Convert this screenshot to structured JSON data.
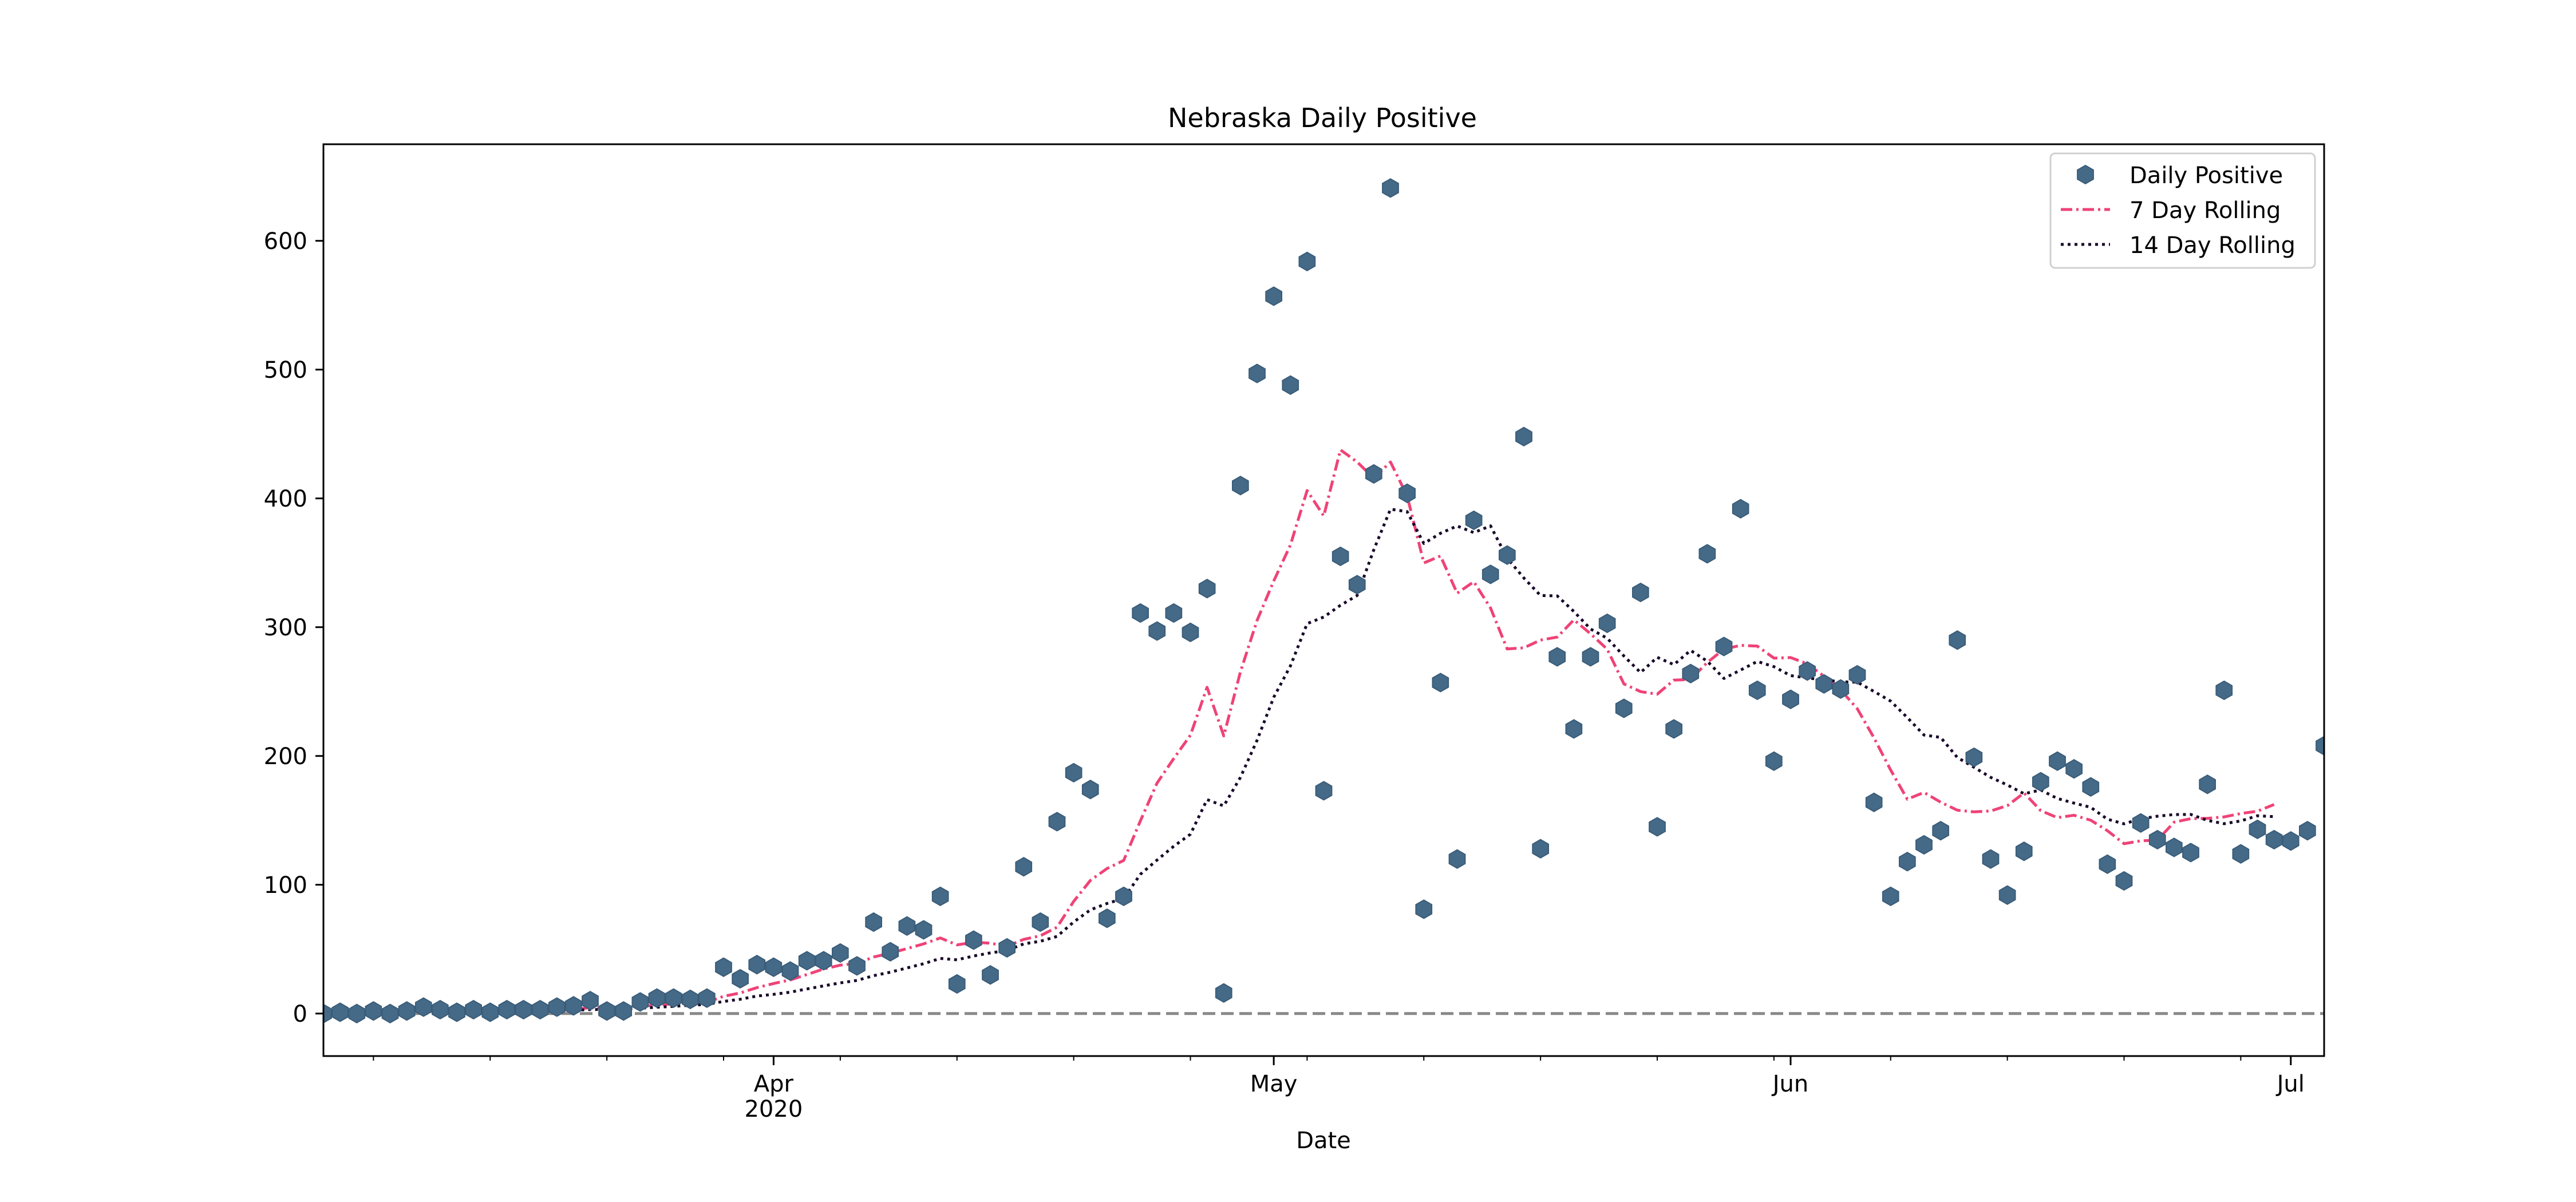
{
  "chart_data": {
    "type": "scatter",
    "title": "Nebraska Daily Positive",
    "xlabel": "Date",
    "ylabel": "",
    "x_start": "2020-03-05",
    "xlim": [
      "2020-03-05",
      "2020-07-03"
    ],
    "ylim": [
      -33,
      675
    ],
    "x_ticks": [
      {
        "date": "2020-04-01",
        "label": "Apr",
        "sublabel": "2020"
      },
      {
        "date": "2020-05-01",
        "label": "May",
        "sublabel": ""
      },
      {
        "date": "2020-06-01",
        "label": "Jun",
        "sublabel": ""
      },
      {
        "date": "2020-07-01",
        "label": "Jul",
        "sublabel": ""
      }
    ],
    "y_ticks": [
      0,
      100,
      200,
      300,
      400,
      500,
      600
    ],
    "reference_line": {
      "y": 0,
      "color": "#888888",
      "style": "dashed"
    },
    "legend": {
      "position": "top-right",
      "entries": [
        "Daily Positive",
        "7 Day Rolling",
        "14 Day Rolling"
      ]
    },
    "series": [
      {
        "name": "Daily Positive",
        "kind": "scatter",
        "color": "#456a88",
        "values": [
          0,
          1,
          0,
          2,
          0,
          2,
          5,
          3,
          1,
          3,
          1,
          3,
          3,
          3,
          5,
          6,
          10,
          2,
          2,
          9,
          12,
          12,
          11,
          12,
          36,
          27,
          38,
          36,
          33,
          41,
          41,
          47,
          37,
          71,
          48,
          68,
          65,
          91,
          23,
          57,
          30,
          51,
          114,
          71,
          149,
          187,
          174,
          74,
          91,
          311,
          297,
          311,
          296,
          330,
          16,
          410,
          497,
          557,
          488,
          584,
          173,
          355,
          333,
          419,
          641,
          404,
          81,
          257,
          120,
          383,
          341,
          356,
          448,
          128,
          277,
          221,
          277,
          303,
          237,
          327,
          145,
          221,
          264,
          357,
          285,
          392,
          251,
          196,
          244,
          266,
          256,
          252,
          263,
          164,
          91,
          118,
          131,
          142,
          290,
          199,
          120,
          92,
          126,
          180,
          196,
          190,
          176,
          116,
          103,
          148,
          135,
          129,
          125,
          178,
          251,
          124,
          143,
          135,
          134,
          142,
          208
        ]
      },
      {
        "name": "7 Day Rolling",
        "kind": "line",
        "color": "#ef4377",
        "style": "dashdot",
        "values": [
          null,
          null,
          null,
          null,
          null,
          null,
          1.4,
          1.9,
          1.9,
          2.3,
          2.4,
          2.6,
          2.7,
          2.4,
          2.7,
          3.4,
          4.4,
          4.6,
          5.1,
          5.6,
          6.6,
          7.6,
          8.3,
          8.6,
          13.4,
          16.0,
          20.1,
          23.3,
          26.1,
          30.3,
          34.6,
          37.6,
          38.9,
          43.9,
          46.9,
          50.4,
          54.1,
          58.7,
          53.3,
          55.4,
          54.6,
          52.3,
          57.6,
          60.4,
          67.0,
          87.1,
          103.4,
          112.6,
          118.9,
          149.6,
          179.0,
          198.0,
          216.1,
          253.3,
          215.6,
          265.3,
          305.3,
          335.9,
          363.9,
          406.1,
          386.4,
          437.7,
          428.3,
          415.6,
          428.3,
          402.0,
          349.9,
          355.3,
          326.4,
          335.3,
          314.9,
          283.1,
          284.0,
          290.0,
          292.3,
          305.7,
          294.9,
          282.9,
          256.0,
          250.0,
          248.0,
          258.9,
          259.4,
          272.6,
          282.9,
          285.9,
          285.3,
          276.0,
          276.4,
          271.6,
          262.0,
          251.3,
          236.7,
          214.1,
          189.1,
          166.4,
          171.7,
          164.1,
          157.9,
          156.6,
          157.3,
          161.4,
          171.3,
          157.6,
          152.1,
          154.0,
          150.1,
          142.0,
          131.9,
          134.1,
          134.6,
          148.6,
          151.3,
          151.6,
          152.7,
          155.3,
          157.1,
          162.3
        ]
      },
      {
        "name": "14 Day Rolling",
        "kind": "line",
        "color": "#170829",
        "style": "dotted",
        "values": [
          null,
          null,
          null,
          null,
          null,
          null,
          null,
          null,
          null,
          null,
          null,
          null,
          null,
          1.9,
          2.2,
          2.5,
          3.1,
          3.2,
          3.6,
          4.1,
          4.9,
          5.6,
          6.4,
          7.1,
          9.4,
          11.1,
          13.6,
          14.9,
          16.6,
          19.1,
          21.5,
          23.8,
          25.7,
          29.4,
          32.1,
          35.4,
          38.7,
          42.8,
          41.7,
          44.7,
          47.1,
          48.9,
          54.1,
          56.1,
          59.9,
          71.1,
          80.5,
          85.5,
          89.3,
          108.1,
          119.2,
          129.9,
          139.2,
          166.1,
          161.2,
          183.4,
          212.2,
          245.6,
          270.0,
          302.8,
          307.9,
          317.0,
          324.6,
          360.1,
          391.6,
          389.7,
          365.0,
          372.9,
          378.6,
          373.4,
          378.7,
          353.6,
          338.2,
          324.6,
          324.3,
          312.2,
          298.6,
          291.4,
          277.6,
          264.8,
          276.6,
          270.9,
          282.0,
          273.6,
          260.2,
          266.7,
          273.4,
          269.3,
          262.4,
          260.6,
          259.1,
          257.6,
          257.3,
          250.1,
          242.6,
          229.8,
          216.3,
          214.4,
          198.8,
          191.2,
          183.4,
          177.5,
          170.7,
          173.6,
          167.0,
          163.4,
          160.1,
          150.9,
          147.3,
          151.2,
          153.2,
          154.5,
          154.6,
          150.0,
          147.4,
          149.6,
          153.6,
          152.9
        ]
      }
    ]
  }
}
